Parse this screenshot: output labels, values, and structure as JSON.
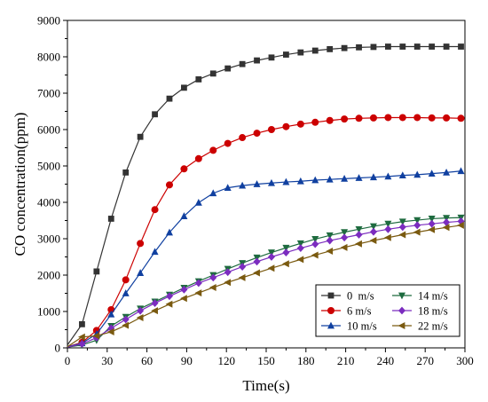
{
  "chart_data": {
    "type": "line",
    "title": "",
    "xlabel": "Time(s)",
    "ylabel": "CO concentration(ppm)",
    "xlim": [
      0,
      300
    ],
    "ylim": [
      0,
      9000
    ],
    "xticks": [
      0,
      30,
      60,
      90,
      120,
      150,
      180,
      210,
      240,
      270,
      300
    ],
    "yticks": [
      0,
      1000,
      2000,
      3000,
      4000,
      5000,
      6000,
      7000,
      8000,
      9000
    ],
    "grid": false,
    "legend_position": "bottom-right",
    "x": [
      0,
      11,
      22,
      33,
      44,
      55,
      66,
      77,
      88,
      99,
      110,
      121,
      132,
      143,
      154,
      165,
      176,
      187,
      198,
      209,
      220,
      231,
      242,
      253,
      264,
      275,
      286,
      297
    ],
    "series": [
      {
        "name": "0  m/s",
        "color": "#333333",
        "marker": "square",
        "values": [
          80,
          650,
          2100,
          3550,
          4820,
          5800,
          6420,
          6850,
          7150,
          7380,
          7540,
          7680,
          7800,
          7900,
          7980,
          8060,
          8120,
          8170,
          8210,
          8240,
          8260,
          8270,
          8280,
          8280,
          8280,
          8280,
          8280,
          8280
        ]
      },
      {
        "name": "6 m/s",
        "color": "#cc0000",
        "marker": "circle",
        "values": [
          30,
          150,
          480,
          1050,
          1870,
          2870,
          3800,
          4480,
          4920,
          5200,
          5430,
          5620,
          5780,
          5900,
          6000,
          6080,
          6150,
          6200,
          6250,
          6290,
          6310,
          6320,
          6330,
          6330,
          6330,
          6320,
          6320,
          6310
        ]
      },
      {
        "name": "10 m/s",
        "color": "#1040a0",
        "marker": "triangle-up",
        "values": [
          30,
          130,
          380,
          920,
          1500,
          2060,
          2640,
          3170,
          3620,
          3990,
          4250,
          4400,
          4460,
          4500,
          4530,
          4560,
          4580,
          4610,
          4630,
          4650,
          4670,
          4690,
          4710,
          4740,
          4760,
          4790,
          4820,
          4860
        ]
      },
      {
        "name": "14 m/s",
        "color": "#1e6b3f",
        "marker": "triangle-down",
        "values": [
          20,
          80,
          210,
          600,
          850,
          1080,
          1270,
          1460,
          1650,
          1830,
          2000,
          2170,
          2330,
          2480,
          2620,
          2750,
          2870,
          2990,
          3090,
          3180,
          3260,
          3340,
          3410,
          3470,
          3510,
          3550,
          3570,
          3580
        ]
      },
      {
        "name": "18 m/s",
        "color": "#7b2cbf",
        "marker": "diamond",
        "values": [
          20,
          110,
          280,
          540,
          780,
          1020,
          1230,
          1420,
          1600,
          1780,
          1930,
          2080,
          2230,
          2370,
          2500,
          2620,
          2740,
          2850,
          2950,
          3030,
          3110,
          3190,
          3260,
          3320,
          3370,
          3410,
          3450,
          3480
        ]
      },
      {
        "name": "22 m/s",
        "color": "#7a5a10",
        "marker": "triangle-left",
        "values": [
          30,
          300,
          330,
          440,
          620,
          830,
          1020,
          1200,
          1360,
          1510,
          1660,
          1800,
          1930,
          2060,
          2190,
          2310,
          2430,
          2550,
          2660,
          2760,
          2860,
          2950,
          3030,
          3110,
          3180,
          3250,
          3310,
          3370
        ]
      }
    ]
  }
}
